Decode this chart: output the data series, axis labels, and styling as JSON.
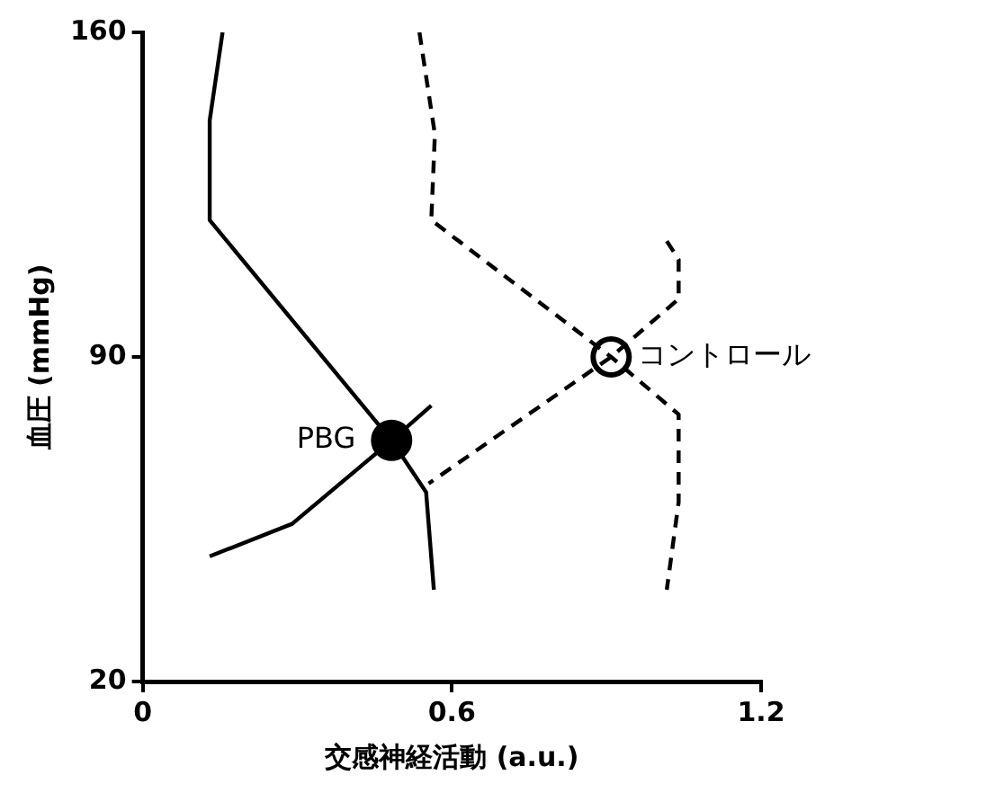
{
  "chart_data": {
    "type": "line",
    "xlabel": "交感神経活動 (a.u.)",
    "ylabel": "血圧 (mmHg)",
    "xlim": [
      0,
      1.2
    ],
    "xticks": [
      0,
      0.6,
      1.2
    ],
    "ylim": [
      20,
      160
    ],
    "yticks": [
      20,
      90,
      160
    ],
    "grid": false,
    "legend": false,
    "marker": "none",
    "series": [
      {
        "color": "#000000",
        "line_style": "solid",
        "x": [
          0.155,
          0.13,
          0.13,
          0.483,
          0.55,
          0.565
        ],
        "values": [
          160,
          141,
          119.5,
          72,
          60.8,
          39.8
        ]
      },
      {
        "color": "#000000",
        "line_style": "solid",
        "x": [
          0.56,
          0.483,
          0.29,
          0.13
        ],
        "values": [
          79.5,
          72,
          54,
          47
        ]
      },
      {
        "color": "#000000",
        "line_style": "dashed",
        "x": [
          0.537,
          0.567,
          0.56,
          0.909,
          1.04,
          1.04,
          1.017
        ],
        "values": [
          160,
          138,
          119.5,
          90,
          77.6,
          58.7,
          39.8
        ]
      },
      {
        "color": "#000000",
        "line_style": "dashed",
        "x": [
          1.017,
          1.04,
          1.04,
          0.909,
          0.555
        ],
        "values": [
          115,
          111,
          102.5,
          90,
          62.7
        ]
      },
      {
        "type": "scatter",
        "name": "PBG",
        "color": "#000000",
        "marker": "circle",
        "x": [
          0.483
        ],
        "values": [
          72
        ]
      },
      {
        "type": "scatter",
        "name": "コントロール",
        "color": "#ffffff",
        "marker": "circle",
        "x": [
          0.909
        ],
        "values": [
          90
        ]
      }
    ]
  }
}
